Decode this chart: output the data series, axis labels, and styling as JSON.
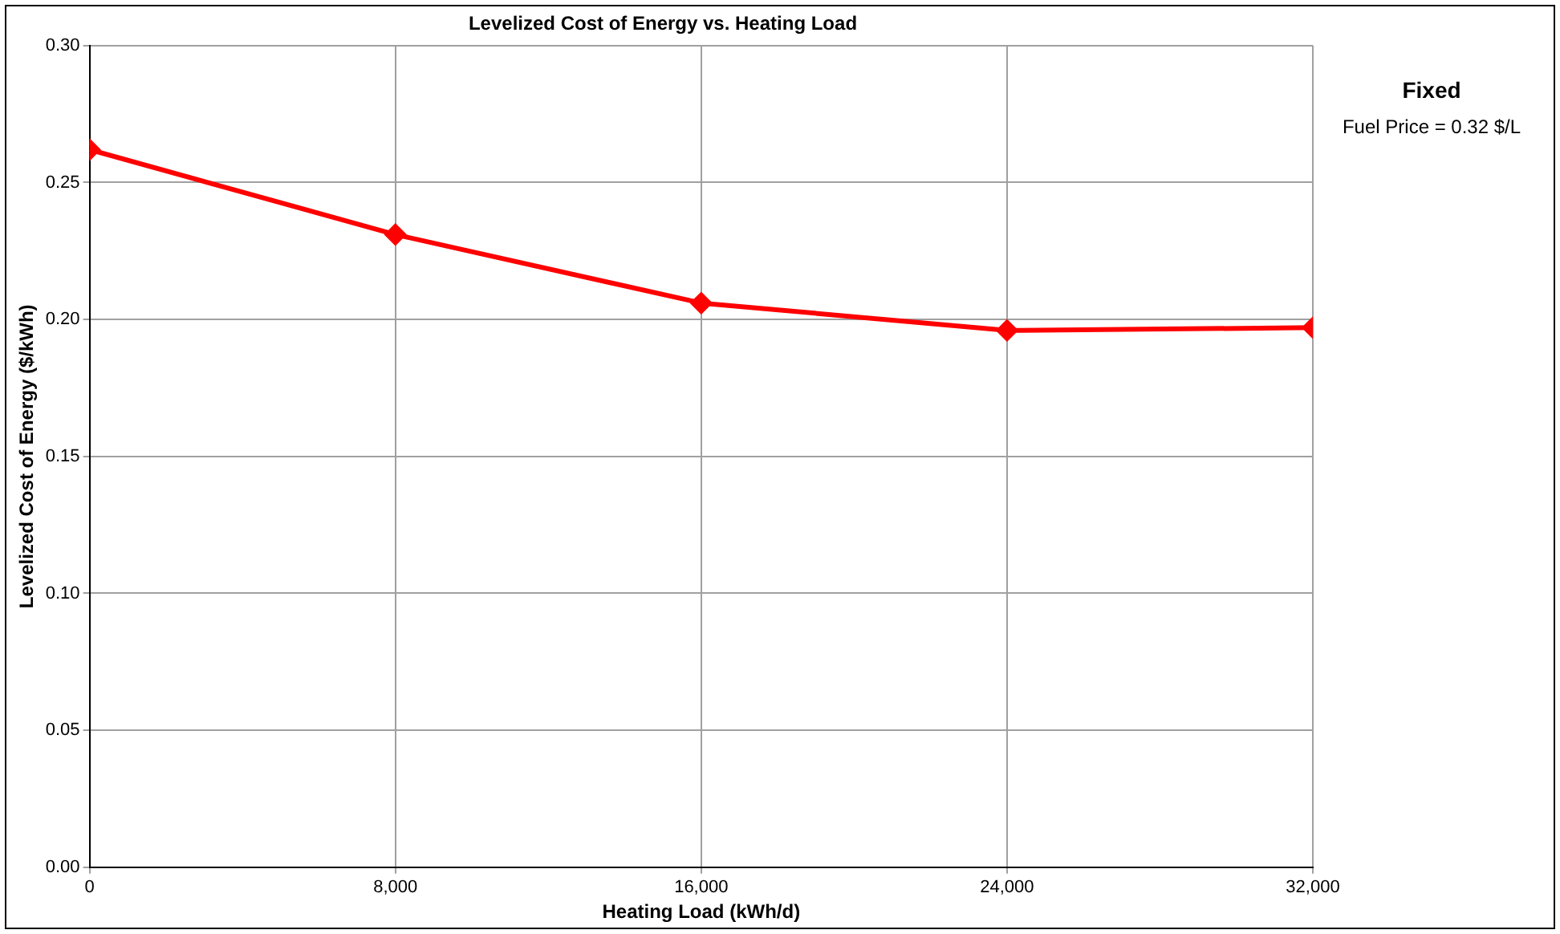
{
  "chart_data": {
    "type": "line",
    "title": "Levelized Cost of Energy vs. Heating Load",
    "xlabel": "Heating Load (kWh/d)",
    "ylabel": "Levelized Cost of Energy ($/kWh)",
    "x": [
      0,
      8000,
      16000,
      24000,
      32000
    ],
    "series": [
      {
        "color": "#ff0000",
        "values": [
          0.262,
          0.231,
          0.206,
          0.196,
          0.197
        ]
      }
    ],
    "xlim": [
      0,
      32000
    ],
    "xticks": [
      0,
      {
        "value": 8000,
        "label": "8,000"
      },
      {
        "value": 16000,
        "label": "16,000"
      },
      {
        "value": 24000,
        "label": "24,000"
      },
      {
        "value": 32000,
        "label": "32,000"
      }
    ],
    "ylim": [
      0,
      0.3
    ],
    "yticks": [
      {
        "value": 0,
        "label": "0.00"
      },
      {
        "value": 0.05,
        "label": "0.05"
      },
      {
        "value": 0.1,
        "label": "0.10"
      },
      {
        "value": 0.15,
        "label": "0.15"
      },
      {
        "value": 0.2,
        "label": "0.20"
      },
      {
        "value": 0.25,
        "label": "0.25"
      },
      {
        "value": 0.3,
        "label": "0.30"
      }
    ],
    "grid": true,
    "legend": false,
    "marker": "diamond",
    "line_style": "solid",
    "annotations": [
      "Fixed",
      "Fuel Price = 0.32 $/L"
    ]
  }
}
